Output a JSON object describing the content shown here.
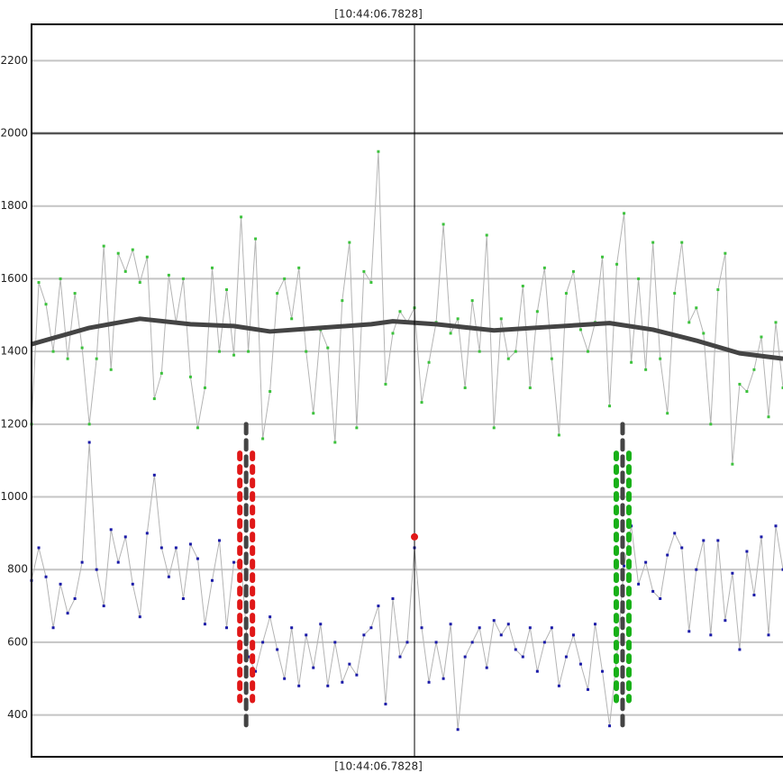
{
  "chart_data": {
    "type": "line",
    "cursor": {
      "x": 53,
      "label": "[10:44:06.7828]"
    },
    "xlim": [
      0,
      104
    ],
    "ylim": [
      285,
      2300
    ],
    "yticks": [
      400,
      600,
      800,
      1000,
      1200,
      1400,
      1600,
      1800,
      2000,
      2200
    ],
    "highlight_gridline": 2000,
    "grid": true,
    "series": [
      {
        "line_color": "#b4b4b4",
        "point_color": "#3cc23c",
        "values": [
          1200,
          1590,
          1530,
          1400,
          1600,
          1380,
          1560,
          1410,
          1200,
          1380,
          1690,
          1350,
          1670,
          1620,
          1680,
          1590,
          1660,
          1270,
          1340,
          1610,
          1480,
          1600,
          1330,
          1190,
          1300,
          1630,
          1400,
          1570,
          1390,
          1770,
          1400,
          1710,
          1160,
          1290,
          1560,
          1600,
          1490,
          1630,
          1400,
          1230,
          1460,
          1410,
          1150,
          1540,
          1700,
          1190,
          1620,
          1590,
          1950,
          1310,
          1450,
          1510,
          1480,
          1520,
          1260,
          1370,
          1480,
          1750,
          1450,
          1490,
          1300,
          1540,
          1400,
          1720,
          1190,
          1490,
          1380,
          1400,
          1580,
          1300,
          1510,
          1630,
          1380,
          1170,
          1560,
          1620,
          1460,
          1400,
          1480,
          1660,
          1250,
          1640,
          1780,
          1370,
          1600,
          1350,
          1700,
          1380,
          1230,
          1560,
          1700,
          1480,
          1520,
          1450,
          1200,
          1570,
          1670,
          1090,
          1310,
          1290,
          1350,
          1440,
          1220,
          1480,
          1300
        ]
      },
      {
        "line_color": "#b4b4b4",
        "point_color": "#1a1aa8",
        "values": [
          770,
          860,
          780,
          640,
          760,
          680,
          720,
          820,
          1150,
          800,
          700,
          910,
          820,
          890,
          760,
          670,
          900,
          1060,
          860,
          780,
          860,
          720,
          870,
          830,
          650,
          770,
          880,
          640,
          820,
          820,
          560,
          520,
          600,
          670,
          580,
          500,
          640,
          480,
          620,
          530,
          650,
          480,
          600,
          490,
          540,
          510,
          620,
          640,
          700,
          430,
          720,
          560,
          600,
          860,
          640,
          490,
          600,
          500,
          650,
          360,
          560,
          600,
          640,
          530,
          660,
          620,
          650,
          580,
          560,
          640,
          520,
          600,
          640,
          480,
          560,
          620,
          540,
          470,
          650,
          520,
          370,
          560,
          810,
          920,
          760,
          820,
          740,
          720,
          840,
          900,
          860,
          630,
          800,
          880,
          620,
          880,
          660,
          790,
          580,
          850,
          730,
          890,
          620,
          920,
          800
        ]
      },
      {
        "line_color": "#444444",
        "smooth": true,
        "x": [
          0,
          8,
          15,
          22,
          28,
          33,
          40,
          47,
          50,
          56,
          64,
          72,
          80,
          86,
          92,
          98,
          104
        ],
        "values": [
          1420,
          1465,
          1490,
          1475,
          1470,
          1455,
          1465,
          1475,
          1483,
          1475,
          1458,
          1468,
          1478,
          1460,
          1430,
          1395,
          1380
        ]
      }
    ],
    "cursor_point": {
      "x": 53,
      "y": 890,
      "color": "#e01818"
    },
    "markers": [
      {
        "x": 29.7,
        "top": 1200,
        "bottom": 355,
        "dot_top": 1120,
        "dot_bottom": 440,
        "color": "#e01818"
      },
      {
        "x": 81.8,
        "top": 1200,
        "bottom": 355,
        "dot_top": 1120,
        "dot_bottom": 440,
        "color": "#18b018"
      }
    ]
  }
}
